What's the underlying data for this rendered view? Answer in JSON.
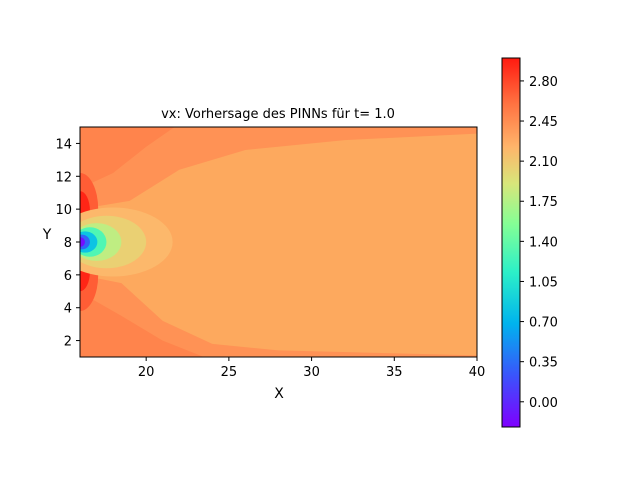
{
  "chart_data": {
    "type": "heatmap",
    "subtype": "filled-contour",
    "title": "vx: Vorhersage des PINNs für t= 1.0",
    "xlabel": "X",
    "ylabel": "Y",
    "xlim": [
      16,
      40
    ],
    "ylim": [
      1,
      15
    ],
    "xticks": [
      "20",
      "25",
      "30",
      "35",
      "40"
    ],
    "yticks": [
      "2",
      "4",
      "6",
      "8",
      "10",
      "12",
      "14"
    ],
    "colormap": "rainbow",
    "colorbar": {
      "vmin": -0.22,
      "vmax": 3.0,
      "ticks": [
        "0.00",
        "0.35",
        "0.70",
        "1.05",
        "1.40",
        "1.75",
        "2.10",
        "2.45",
        "2.80"
      ]
    },
    "field": {
      "background_value": 2.3,
      "features": [
        {
          "kind": "jet-core-low",
          "x": 16.2,
          "y": 8.0,
          "value": -0.2
        },
        {
          "kind": "wake-lobe",
          "x": 18.0,
          "y": 8.0,
          "value": 2.1
        },
        {
          "kind": "high-edge",
          "x": 16.0,
          "y": 9.8,
          "value": 2.95
        },
        {
          "kind": "high-edge",
          "x": 16.0,
          "y": 6.2,
          "value": 2.95
        },
        {
          "kind": "high-band",
          "x": 21.0,
          "y": 13.5,
          "value": 2.45
        },
        {
          "kind": "high-band",
          "x": 21.0,
          "y": 2.5,
          "value": 2.45
        }
      ]
    }
  }
}
